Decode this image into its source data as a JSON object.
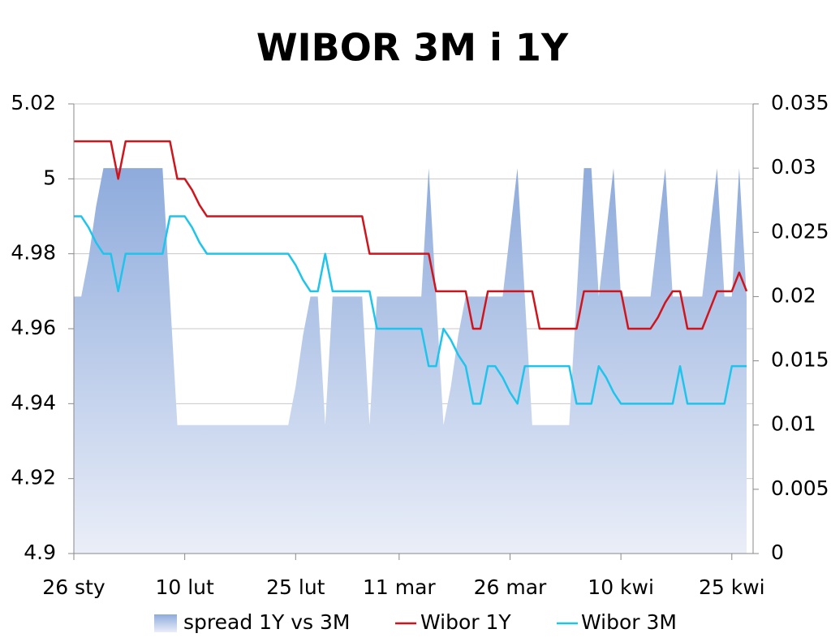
{
  "chart_data": {
    "type": "line",
    "title": "WIBOR 3M i 1Y",
    "categories": [
      "26 sty",
      null,
      null,
      null,
      null,
      null,
      null,
      null,
      null,
      null,
      null,
      null,
      null,
      null,
      null,
      "10 lut",
      null,
      null,
      null,
      null,
      null,
      null,
      null,
      null,
      null,
      null,
      null,
      null,
      null,
      null,
      "25 lut",
      null,
      null,
      null,
      null,
      null,
      null,
      null,
      null,
      null,
      null,
      null,
      null,
      null,
      "11 mar",
      null,
      null,
      null,
      null,
      null,
      null,
      null,
      null,
      null,
      null,
      null,
      null,
      null,
      null,
      "26 mar",
      null,
      null,
      null,
      null,
      null,
      null,
      null,
      null,
      null,
      null,
      null,
      null,
      null,
      null,
      "10 kwi",
      null,
      null,
      null,
      null,
      null,
      null,
      null,
      null,
      null,
      null,
      null,
      null,
      null,
      null,
      "25 kwi",
      null,
      null
    ],
    "series": [
      {
        "name": "spread 1Y vs 3M",
        "kind": "area",
        "axis": "y2",
        "color": "#8eabdc",
        "values": [
          0.02,
          0.02,
          0.023,
          0.027,
          0.03,
          0.03,
          0.03,
          0.03,
          0.03,
          0.03,
          0.03,
          0.03,
          0.03,
          0.02,
          0.01,
          0.01,
          0.01,
          0.01,
          0.01,
          0.01,
          0.01,
          0.01,
          0.01,
          0.01,
          0.01,
          0.01,
          0.01,
          0.01,
          0.01,
          0.01,
          0.013,
          0.017,
          0.02,
          0.02,
          0.01,
          0.02,
          0.02,
          0.02,
          0.02,
          0.02,
          0.01,
          0.02,
          0.02,
          0.02,
          0.02,
          0.02,
          0.02,
          0.02,
          0.03,
          0.02,
          0.01,
          0.013,
          0.017,
          0.02,
          0.02,
          0.02,
          0.02,
          0.02,
          0.02,
          0.025,
          0.03,
          0.02,
          0.01,
          0.01,
          0.01,
          0.01,
          0.01,
          0.01,
          0.02,
          0.03,
          0.03,
          0.02,
          0.025,
          0.03,
          0.02,
          0.02,
          0.02,
          0.02,
          0.02,
          0.025,
          0.03,
          0.02,
          0.02,
          0.02,
          0.02,
          0.02,
          0.025,
          0.03,
          0.02,
          0.02,
          0.03,
          0.02
        ]
      },
      {
        "name": "Wibor 1Y",
        "kind": "line",
        "color": "#d0141c",
        "values": [
          5.01,
          5.01,
          5.01,
          5.01,
          5.01,
          5.01,
          5.0,
          5.01,
          5.01,
          5.01,
          5.01,
          5.01,
          5.01,
          5.01,
          5.0,
          5.0,
          4.997,
          4.993,
          4.99,
          4.99,
          4.99,
          4.99,
          4.99,
          4.99,
          4.99,
          4.99,
          4.99,
          4.99,
          4.99,
          4.99,
          4.99,
          4.99,
          4.99,
          4.99,
          4.99,
          4.99,
          4.99,
          4.99,
          4.99,
          4.99,
          4.98,
          4.98,
          4.98,
          4.98,
          4.98,
          4.98,
          4.98,
          4.98,
          4.98,
          4.97,
          4.97,
          4.97,
          4.97,
          4.97,
          4.96,
          4.96,
          4.97,
          4.97,
          4.97,
          4.97,
          4.97,
          4.97,
          4.97,
          4.96,
          4.96,
          4.96,
          4.96,
          4.96,
          4.96,
          4.97,
          4.97,
          4.97,
          4.97,
          4.97,
          4.97,
          4.96,
          4.96,
          4.96,
          4.96,
          4.963,
          4.967,
          4.97,
          4.97,
          4.96,
          4.96,
          4.96,
          4.965,
          4.97,
          4.97,
          4.97,
          4.975,
          4.97
        ]
      },
      {
        "name": "Wibor 3M",
        "kind": "line",
        "color": "#1ec4ec",
        "values": [
          4.99,
          4.99,
          4.987,
          4.983,
          4.98,
          4.98,
          4.97,
          4.98,
          4.98,
          4.98,
          4.98,
          4.98,
          4.98,
          4.99,
          4.99,
          4.99,
          4.987,
          4.983,
          4.98,
          4.98,
          4.98,
          4.98,
          4.98,
          4.98,
          4.98,
          4.98,
          4.98,
          4.98,
          4.98,
          4.98,
          4.977,
          4.973,
          4.97,
          4.97,
          4.98,
          4.97,
          4.97,
          4.97,
          4.97,
          4.97,
          4.97,
          4.96,
          4.96,
          4.96,
          4.96,
          4.96,
          4.96,
          4.96,
          4.95,
          4.95,
          4.96,
          4.957,
          4.953,
          4.95,
          4.94,
          4.94,
          4.95,
          4.95,
          4.947,
          4.943,
          4.94,
          4.95,
          4.95,
          4.95,
          4.95,
          4.95,
          4.95,
          4.95,
          4.94,
          4.94,
          4.94,
          4.95,
          4.947,
          4.943,
          4.94,
          4.94,
          4.94,
          4.94,
          4.94,
          4.94,
          4.94,
          4.94,
          4.95,
          4.94,
          4.94,
          4.94,
          4.94,
          4.94,
          4.94,
          4.95,
          4.95,
          4.95
        ]
      }
    ],
    "ylim": [
      4.9,
      5.02
    ],
    "yticks": [
      4.9,
      4.92,
      4.94,
      4.96,
      4.98,
      5,
      5.02
    ],
    "y2lim": [
      0,
      0.035
    ],
    "y2ticks": [
      0,
      0.005,
      0.01,
      0.015,
      0.02,
      0.025,
      0.03,
      0.035
    ],
    "grid": true,
    "legend": "bottom"
  }
}
